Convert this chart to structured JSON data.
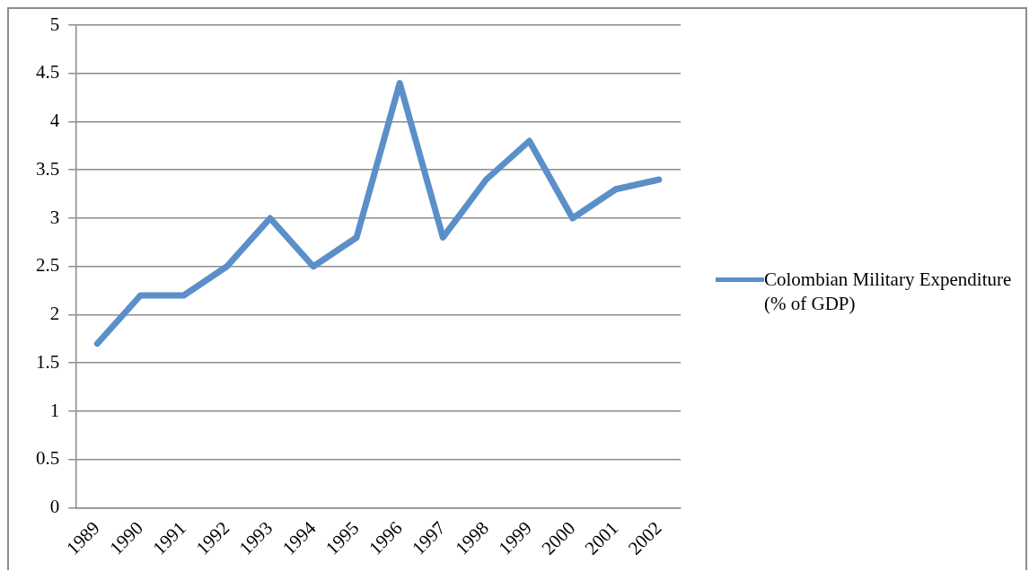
{
  "chart_data": {
    "type": "line",
    "categories": [
      "1989",
      "1990",
      "1991",
      "1992",
      "1993",
      "1994",
      "1995",
      "1996",
      "1997",
      "1998",
      "1999",
      "2000",
      "2001",
      "2002"
    ],
    "series": [
      {
        "name": "Colombian Military Expenditure (% of GDP)",
        "color": "#5b8fc9",
        "values": [
          1.7,
          2.2,
          2.2,
          2.5,
          3.0,
          2.5,
          2.8,
          4.4,
          2.8,
          3.4,
          3.8,
          3.0,
          3.3,
          3.4
        ]
      }
    ],
    "ylim": [
      0,
      5
    ],
    "yticks": [
      0,
      0.5,
      1,
      1.5,
      2,
      2.5,
      3,
      3.5,
      4,
      4.5,
      5
    ],
    "grid": "y",
    "legend": "right",
    "marker": "none",
    "line_style": "solid"
  }
}
